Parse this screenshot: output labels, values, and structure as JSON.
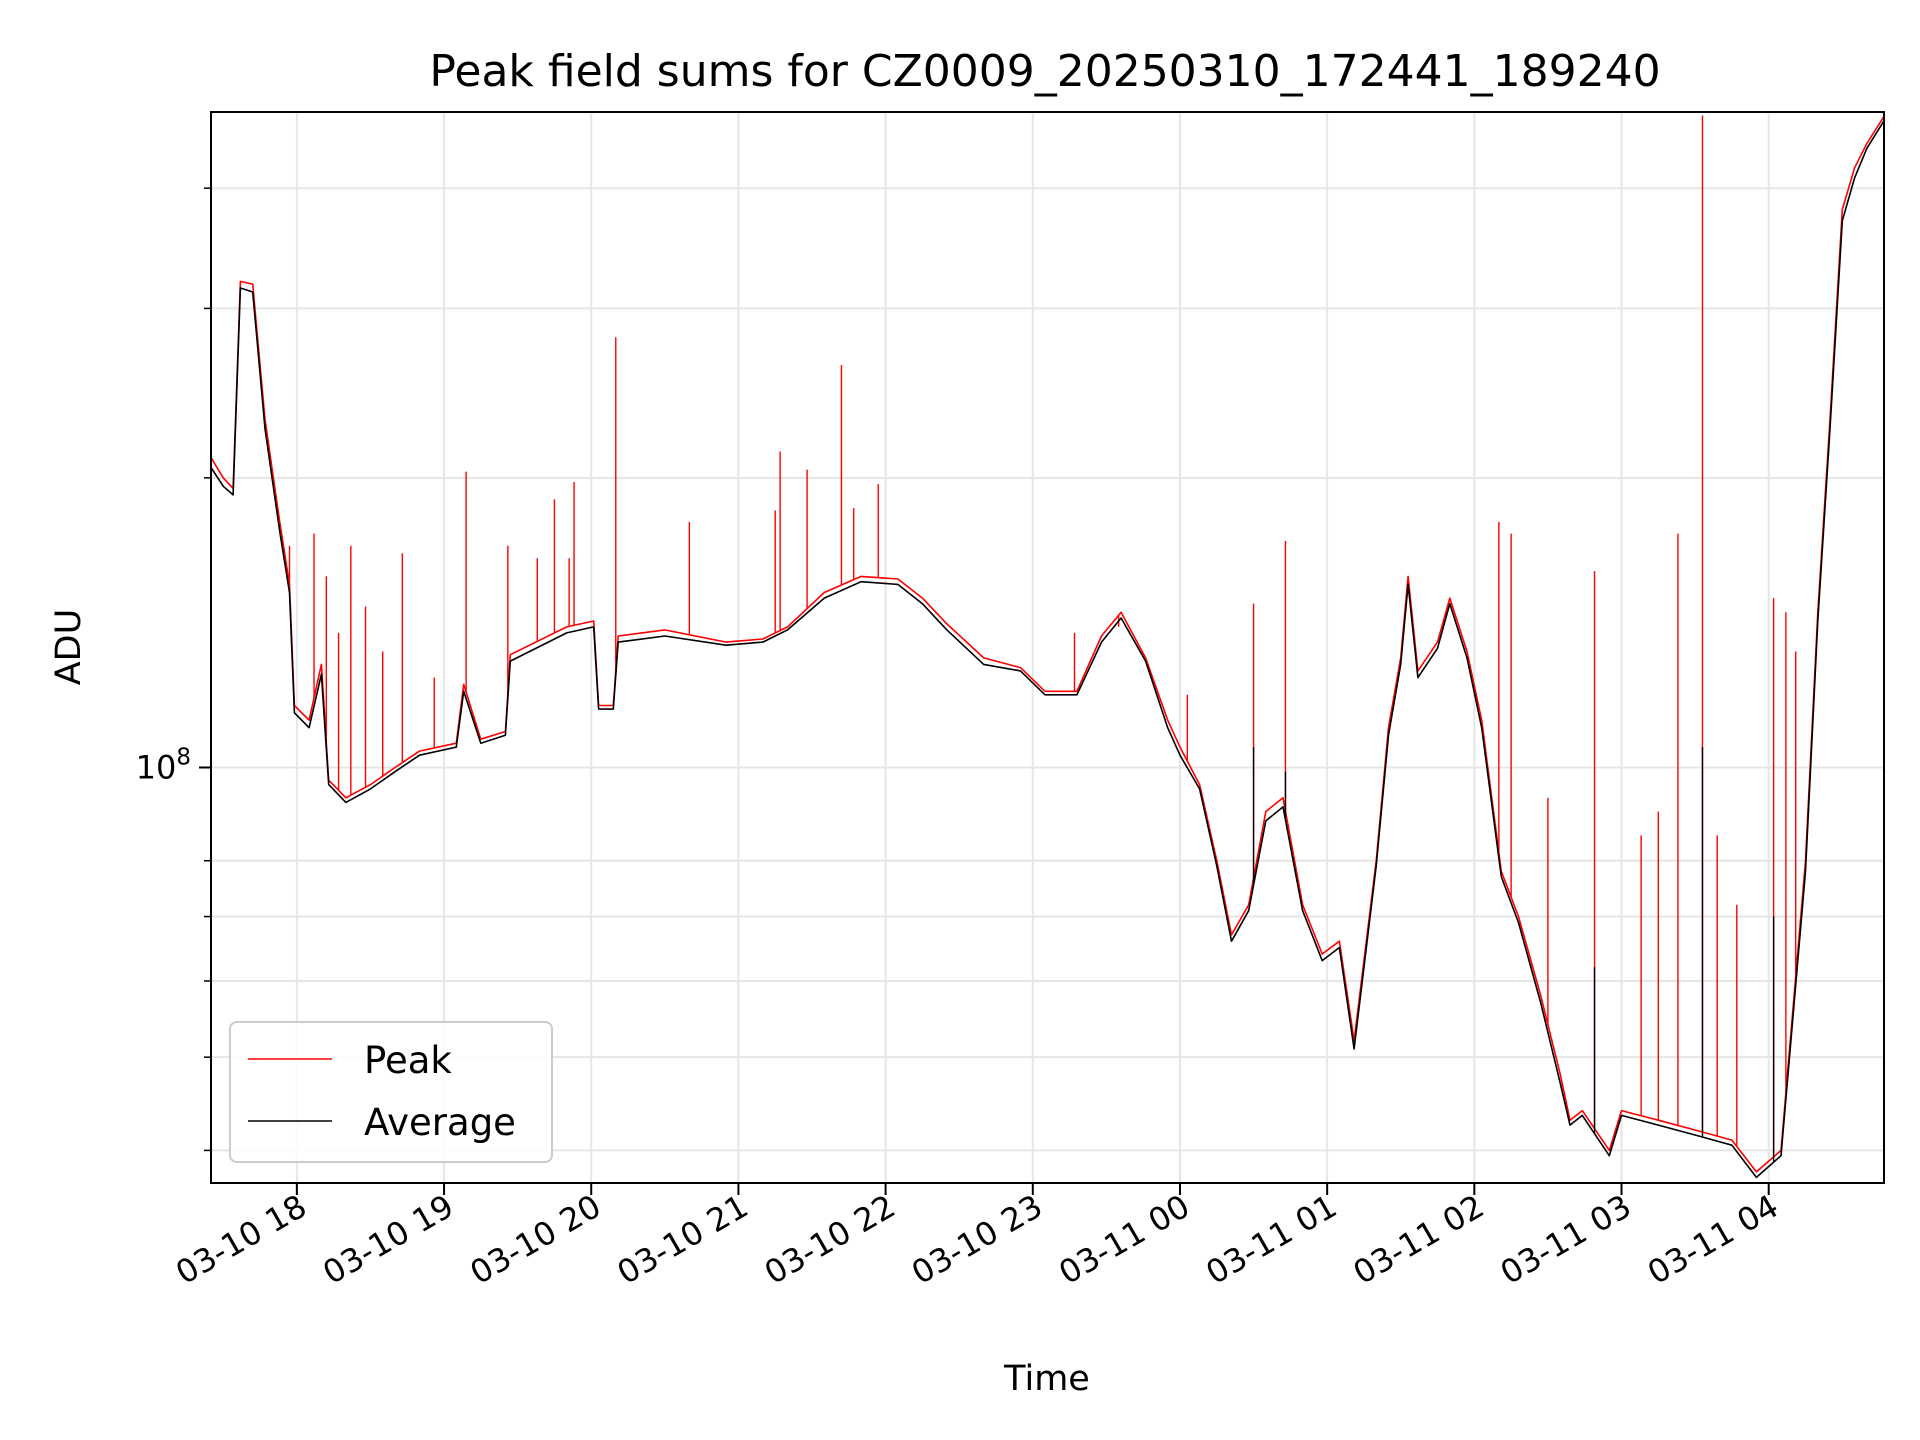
{
  "chart_data": {
    "type": "line",
    "title": "Peak field sums for CZ0009_20250310_172441_189240",
    "xlabel": "Time",
    "ylabel": "ADU",
    "yscale": "log",
    "x_unit": "time",
    "xlim": [
      "2025-03-10 17:25",
      "2025-03-11 04:47"
    ],
    "ylim": [
      37000000,
      480000000
    ],
    "grid": true,
    "legend_position": "lower-left",
    "xticks": [
      {
        "t": "2025-03-10 18:00",
        "label": "03-10 18"
      },
      {
        "t": "2025-03-10 19:00",
        "label": "03-10 19"
      },
      {
        "t": "2025-03-10 20:00",
        "label": "03-10 20"
      },
      {
        "t": "2025-03-10 21:00",
        "label": "03-10 21"
      },
      {
        "t": "2025-03-10 22:00",
        "label": "03-10 22"
      },
      {
        "t": "2025-03-10 23:00",
        "label": "03-10 23"
      },
      {
        "t": "2025-03-11 00:00",
        "label": "03-11 00"
      },
      {
        "t": "2025-03-11 01:00",
        "label": "03-11 01"
      },
      {
        "t": "2025-03-11 02:00",
        "label": "03-11 02"
      },
      {
        "t": "2025-03-11 03:00",
        "label": "03-11 03"
      },
      {
        "t": "2025-03-11 04:00",
        "label": "03-11 04"
      }
    ],
    "yticks_major": [
      {
        "v": 100000000,
        "label_base": "10",
        "label_exp": "8"
      }
    ],
    "yticks_minor": [
      40000000,
      50000000,
      60000000,
      70000000,
      80000000,
      200000000,
      300000000,
      400000000
    ],
    "series": [
      {
        "name": "Peak",
        "color": "#ff0000",
        "points": [
          [
            "2025-03-10 17:25",
            210000000
          ],
          [
            "2025-03-10 17:30",
            200000000
          ],
          [
            "2025-03-10 17:34",
            195000000
          ],
          [
            "2025-03-10 17:37",
            320000000
          ],
          [
            "2025-03-10 17:42",
            318000000
          ],
          [
            "2025-03-10 17:47",
            230000000
          ],
          [
            "2025-03-10 17:53",
            180000000
          ],
          [
            "2025-03-10 17:57",
            155000000
          ],
          [
            "2025-03-10 17:59",
            116000000
          ],
          [
            "2025-03-10 18:05",
            112000000
          ],
          [
            "2025-03-10 18:10",
            128000000
          ],
          [
            "2025-03-10 18:13",
            97000000
          ],
          [
            "2025-03-10 18:20",
            93000000
          ],
          [
            "2025-03-10 18:30",
            96000000
          ],
          [
            "2025-03-10 18:40",
            100000000
          ],
          [
            "2025-03-10 18:50",
            104000000
          ],
          [
            "2025-03-10 19:05",
            106000000
          ],
          [
            "2025-03-10 19:08",
            122000000
          ],
          [
            "2025-03-10 19:15",
            107000000
          ],
          [
            "2025-03-10 19:25",
            109000000
          ],
          [
            "2025-03-10 19:27",
            131000000
          ],
          [
            "2025-03-10 19:50",
            140000000
          ],
          [
            "2025-03-10 20:01",
            142000000
          ],
          [
            "2025-03-10 20:03",
            116000000
          ],
          [
            "2025-03-10 20:09",
            116000000
          ],
          [
            "2025-03-10 20:11",
            137000000
          ],
          [
            "2025-03-10 20:30",
            139000000
          ],
          [
            "2025-03-10 20:55",
            135000000
          ],
          [
            "2025-03-10 21:10",
            136000000
          ],
          [
            "2025-03-10 21:20",
            140000000
          ],
          [
            "2025-03-10 21:35",
            152000000
          ],
          [
            "2025-03-10 21:50",
            158000000
          ],
          [
            "2025-03-10 22:05",
            157000000
          ],
          [
            "2025-03-10 22:15",
            150000000
          ],
          [
            "2025-03-10 22:25",
            141000000
          ],
          [
            "2025-03-10 22:40",
            130000000
          ],
          [
            "2025-03-10 22:55",
            127000000
          ],
          [
            "2025-03-10 23:05",
            120000000
          ],
          [
            "2025-03-10 23:18",
            120000000
          ],
          [
            "2025-03-10 23:28",
            137000000
          ],
          [
            "2025-03-10 23:36",
            145000000
          ],
          [
            "2025-03-10 23:46",
            130000000
          ],
          [
            "2025-03-10 23:55",
            112000000
          ],
          [
            "2025-03-11 00:00",
            105000000
          ],
          [
            "2025-03-11 00:08",
            96000000
          ],
          [
            "2025-03-11 00:15",
            80000000
          ],
          [
            "2025-03-11 00:21",
            67000000
          ],
          [
            "2025-03-11 00:28",
            72000000
          ],
          [
            "2025-03-11 00:35",
            90000000
          ],
          [
            "2025-03-11 00:42",
            93000000
          ],
          [
            "2025-03-11 00:50",
            72000000
          ],
          [
            "2025-03-11 00:58",
            64000000
          ],
          [
            "2025-03-11 01:05",
            66000000
          ],
          [
            "2025-03-11 01:11",
            52000000
          ],
          [
            "2025-03-11 01:20",
            80000000
          ],
          [
            "2025-03-11 01:25",
            110000000
          ],
          [
            "2025-03-11 01:30",
            130000000
          ],
          [
            "2025-03-11 01:33",
            158000000
          ],
          [
            "2025-03-11 01:37",
            126000000
          ],
          [
            "2025-03-11 01:45",
            135000000
          ],
          [
            "2025-03-11 01:50",
            150000000
          ],
          [
            "2025-03-11 01:57",
            132000000
          ],
          [
            "2025-03-11 02:03",
            112000000
          ],
          [
            "2025-03-11 02:11",
            78000000
          ],
          [
            "2025-03-11 02:18",
            70000000
          ],
          [
            "2025-03-11 02:27",
            58000000
          ],
          [
            "2025-03-11 02:35",
            48000000
          ],
          [
            "2025-03-11 02:39",
            43000000
          ],
          [
            "2025-03-11 02:44",
            44000000
          ],
          [
            "2025-03-11 02:55",
            40000000
          ],
          [
            "2025-03-11 03:00",
            44000000
          ],
          [
            "2025-03-11 03:15",
            43000000
          ],
          [
            "2025-03-11 03:30",
            42000000
          ],
          [
            "2025-03-11 03:45",
            41000000
          ],
          [
            "2025-03-11 03:55",
            38000000
          ],
          [
            "2025-03-11 04:05",
            40000000
          ],
          [
            "2025-03-11 04:15",
            80000000
          ],
          [
            "2025-03-11 04:20",
            145000000
          ],
          [
            "2025-03-11 04:25",
            230000000
          ],
          [
            "2025-03-11 04:30",
            380000000
          ],
          [
            "2025-03-11 04:35",
            420000000
          ],
          [
            "2025-03-11 04:40",
            445000000
          ],
          [
            "2025-03-11 04:47",
            475000000
          ]
        ],
        "spikes": [
          [
            "2025-03-10 17:53",
            178000000
          ],
          [
            "2025-03-10 17:57",
            170000000
          ],
          [
            "2025-03-10 18:07",
            175000000
          ],
          [
            "2025-03-10 18:12",
            158000000
          ],
          [
            "2025-03-10 18:17",
            138000000
          ],
          [
            "2025-03-10 18:22",
            170000000
          ],
          [
            "2025-03-10 18:28",
            147000000
          ],
          [
            "2025-03-10 18:35",
            132000000
          ],
          [
            "2025-03-10 18:43",
            167000000
          ],
          [
            "2025-03-10 18:56",
            124000000
          ],
          [
            "2025-03-10 19:09",
            203000000
          ],
          [
            "2025-03-10 19:26",
            170000000
          ],
          [
            "2025-03-10 19:38",
            165000000
          ],
          [
            "2025-03-10 19:45",
            190000000
          ],
          [
            "2025-03-10 19:51",
            165000000
          ],
          [
            "2025-03-10 19:53",
            198000000
          ],
          [
            "2025-03-10 20:10",
            280000000
          ],
          [
            "2025-03-10 20:40",
            180000000
          ],
          [
            "2025-03-10 21:15",
            185000000
          ],
          [
            "2025-03-10 21:17",
            213000000
          ],
          [
            "2025-03-10 21:28",
            204000000
          ],
          [
            "2025-03-10 21:42",
            262000000
          ],
          [
            "2025-03-10 21:47",
            186000000
          ],
          [
            "2025-03-10 21:57",
            197000000
          ],
          [
            "2025-03-10 23:17",
            138000000
          ],
          [
            "2025-03-10 23:35",
            140000000
          ],
          [
            "2025-03-11 00:03",
            119000000
          ],
          [
            "2025-03-11 00:30",
            148000000
          ],
          [
            "2025-03-11 00:43",
            172000000
          ],
          [
            "2025-03-11 02:10",
            180000000
          ],
          [
            "2025-03-11 02:15",
            175000000
          ],
          [
            "2025-03-11 02:30",
            93000000
          ],
          [
            "2025-03-11 02:49",
            160000000
          ],
          [
            "2025-03-11 03:08",
            85000000
          ],
          [
            "2025-03-11 03:15",
            90000000
          ],
          [
            "2025-03-11 03:23",
            175000000
          ],
          [
            "2025-03-11 03:33",
            476000000
          ],
          [
            "2025-03-11 03:39",
            85000000
          ],
          [
            "2025-03-11 03:47",
            72000000
          ],
          [
            "2025-03-11 04:02",
            150000000
          ],
          [
            "2025-03-11 04:07",
            145000000
          ],
          [
            "2025-03-11 04:11",
            132000000
          ]
        ]
      },
      {
        "name": "Average",
        "color": "#000000",
        "points": [
          [
            "2025-03-10 17:25",
            205000000
          ],
          [
            "2025-03-10 17:30",
            196000000
          ],
          [
            "2025-03-10 17:34",
            192000000
          ],
          [
            "2025-03-10 17:37",
            315000000
          ],
          [
            "2025-03-10 17:42",
            312000000
          ],
          [
            "2025-03-10 17:47",
            225000000
          ],
          [
            "2025-03-10 17:53",
            176000000
          ],
          [
            "2025-03-10 17:57",
            152000000
          ],
          [
            "2025-03-10 17:59",
            114000000
          ],
          [
            "2025-03-10 18:05",
            110000000
          ],
          [
            "2025-03-10 18:10",
            125000000
          ],
          [
            "2025-03-10 18:13",
            96000000
          ],
          [
            "2025-03-10 18:20",
            92000000
          ],
          [
            "2025-03-10 18:30",
            95000000
          ],
          [
            "2025-03-10 18:40",
            99000000
          ],
          [
            "2025-03-10 18:50",
            103000000
          ],
          [
            "2025-03-10 19:05",
            105000000
          ],
          [
            "2025-03-10 19:08",
            120000000
          ],
          [
            "2025-03-10 19:15",
            106000000
          ],
          [
            "2025-03-10 19:25",
            108000000
          ],
          [
            "2025-03-10 19:27",
            129000000
          ],
          [
            "2025-03-10 19:50",
            138000000
          ],
          [
            "2025-03-10 20:01",
            140000000
          ],
          [
            "2025-03-10 20:03",
            115000000
          ],
          [
            "2025-03-10 20:09",
            115000000
          ],
          [
            "2025-03-10 20:11",
            135000000
          ],
          [
            "2025-03-10 20:30",
            137000000
          ],
          [
            "2025-03-10 20:55",
            134000000
          ],
          [
            "2025-03-10 21:10",
            135000000
          ],
          [
            "2025-03-10 21:20",
            139000000
          ],
          [
            "2025-03-10 21:35",
            150000000
          ],
          [
            "2025-03-10 21:50",
            156000000
          ],
          [
            "2025-03-10 22:05",
            155000000
          ],
          [
            "2025-03-10 22:15",
            148000000
          ],
          [
            "2025-03-10 22:25",
            139000000
          ],
          [
            "2025-03-10 22:40",
            128000000
          ],
          [
            "2025-03-10 22:55",
            126000000
          ],
          [
            "2025-03-10 23:05",
            119000000
          ],
          [
            "2025-03-10 23:18",
            119000000
          ],
          [
            "2025-03-10 23:28",
            135000000
          ],
          [
            "2025-03-10 23:36",
            143000000
          ],
          [
            "2025-03-10 23:46",
            129000000
          ],
          [
            "2025-03-10 23:55",
            110000000
          ],
          [
            "2025-03-11 00:00",
            103000000
          ],
          [
            "2025-03-11 00:08",
            95000000
          ],
          [
            "2025-03-11 00:15",
            79000000
          ],
          [
            "2025-03-11 00:21",
            66000000
          ],
          [
            "2025-03-11 00:28",
            71000000
          ],
          [
            "2025-03-11 00:35",
            88000000
          ],
          [
            "2025-03-11 00:42",
            91000000
          ],
          [
            "2025-03-11 00:50",
            71000000
          ],
          [
            "2025-03-11 00:58",
            63000000
          ],
          [
            "2025-03-11 01:05",
            65000000
          ],
          [
            "2025-03-11 01:11",
            51000000
          ],
          [
            "2025-03-11 01:20",
            79000000
          ],
          [
            "2025-03-11 01:25",
            108000000
          ],
          [
            "2025-03-11 01:30",
            128000000
          ],
          [
            "2025-03-11 01:33",
            155000000
          ],
          [
            "2025-03-11 01:37",
            124000000
          ],
          [
            "2025-03-11 01:45",
            133000000
          ],
          [
            "2025-03-11 01:50",
            148000000
          ],
          [
            "2025-03-11 01:57",
            130000000
          ],
          [
            "2025-03-11 02:03",
            110000000
          ],
          [
            "2025-03-11 02:11",
            77000000
          ],
          [
            "2025-03-11 02:18",
            69000000
          ],
          [
            "2025-03-11 02:27",
            57000000
          ],
          [
            "2025-03-11 02:35",
            47000000
          ],
          [
            "2025-03-11 02:39",
            42500000
          ],
          [
            "2025-03-11 02:44",
            43500000
          ],
          [
            "2025-03-11 02:55",
            39500000
          ],
          [
            "2025-03-11 03:00",
            43500000
          ],
          [
            "2025-03-11 03:15",
            42500000
          ],
          [
            "2025-03-11 03:30",
            41500000
          ],
          [
            "2025-03-11 03:45",
            40500000
          ],
          [
            "2025-03-11 03:55",
            37500000
          ],
          [
            "2025-03-11 04:05",
            39500000
          ],
          [
            "2025-03-11 04:15",
            78000000
          ],
          [
            "2025-03-11 04:20",
            142000000
          ],
          [
            "2025-03-11 04:25",
            225000000
          ],
          [
            "2025-03-11 04:30",
            370000000
          ],
          [
            "2025-03-11 04:35",
            410000000
          ],
          [
            "2025-03-11 04:40",
            440000000
          ],
          [
            "2025-03-11 04:47",
            470000000
          ]
        ],
        "spikes": [
          [
            "2025-03-11 00:30",
            105000000
          ],
          [
            "2025-03-11 00:43",
            99000000
          ],
          [
            "2025-03-11 02:49",
            62000000
          ],
          [
            "2025-03-11 03:33",
            105000000
          ],
          [
            "2025-03-11 04:02",
            70000000
          ]
        ]
      }
    ]
  }
}
